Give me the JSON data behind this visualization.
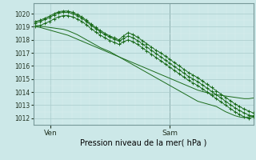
{
  "xlabel": "Pression niveau de la mer( hPa )",
  "bg_color": "#cce8e8",
  "grid_major_color": "#aacccc",
  "grid_minor_color": "#ddeeee",
  "line_color": "#1a6b1a",
  "ylim": [
    1011.5,
    1020.8
  ],
  "yticks": [
    1012,
    1013,
    1014,
    1015,
    1016,
    1017,
    1018,
    1019,
    1020
  ],
  "xtick_labels": [
    "Ven",
    "Sam"
  ],
  "vline_x": 0.615,
  "n_points": 48,
  "series_plain": [
    [
      1019.1,
      1019.05,
      1019.0,
      1018.95,
      1018.9,
      1018.85,
      1018.8,
      1018.7,
      1018.55,
      1018.4,
      1018.2,
      1018.0,
      1017.8,
      1017.6,
      1017.4,
      1017.25,
      1017.1,
      1016.9,
      1016.7,
      1016.5,
      1016.3,
      1016.1,
      1015.9,
      1015.7,
      1015.5,
      1015.3,
      1015.1,
      1014.9,
      1014.7,
      1014.5,
      1014.3,
      1014.1,
      1013.9,
      1013.7,
      1013.5,
      1013.3,
      1013.2,
      1013.1,
      1013.0,
      1012.9,
      1012.7,
      1012.5,
      1012.35,
      1012.2,
      1012.1,
      1012.05,
      1012.1,
      1012.2
    ],
    [
      1019.0,
      1018.95,
      1018.85,
      1018.75,
      1018.65,
      1018.55,
      1018.45,
      1018.35,
      1018.2,
      1018.05,
      1017.9,
      1017.75,
      1017.6,
      1017.45,
      1017.3,
      1017.15,
      1017.0,
      1016.85,
      1016.7,
      1016.55,
      1016.4,
      1016.25,
      1016.1,
      1015.95,
      1015.8,
      1015.65,
      1015.5,
      1015.35,
      1015.2,
      1015.05,
      1014.9,
      1014.75,
      1014.6,
      1014.45,
      1014.3,
      1014.15,
      1014.05,
      1013.95,
      1013.85,
      1013.8,
      1013.75,
      1013.7,
      1013.65,
      1013.6,
      1013.55,
      1013.5,
      1013.5,
      1013.55
    ]
  ],
  "series_marker": [
    [
      1019.4,
      1019.5,
      1019.65,
      1019.8,
      1020.0,
      1020.15,
      1020.2,
      1020.2,
      1020.1,
      1019.95,
      1019.75,
      1019.5,
      1019.2,
      1018.95,
      1018.7,
      1018.5,
      1018.3,
      1018.15,
      1018.0,
      1018.3,
      1018.55,
      1018.4,
      1018.2,
      1017.95,
      1017.7,
      1017.45,
      1017.2,
      1017.0,
      1016.75,
      1016.5,
      1016.25,
      1016.0,
      1015.75,
      1015.5,
      1015.3,
      1015.1,
      1014.85,
      1014.6,
      1014.35,
      1014.1,
      1013.85,
      1013.6,
      1013.35,
      1013.1,
      1012.9,
      1012.7,
      1012.55,
      1012.4
    ],
    [
      1019.3,
      1019.4,
      1019.55,
      1019.7,
      1019.9,
      1020.05,
      1020.1,
      1020.1,
      1020.0,
      1019.85,
      1019.65,
      1019.4,
      1019.1,
      1018.85,
      1018.6,
      1018.4,
      1018.2,
      1018.05,
      1017.9,
      1018.1,
      1018.3,
      1018.15,
      1017.95,
      1017.7,
      1017.45,
      1017.2,
      1016.95,
      1016.7,
      1016.45,
      1016.2,
      1015.95,
      1015.7,
      1015.45,
      1015.2,
      1015.0,
      1014.8,
      1014.55,
      1014.3,
      1014.05,
      1013.8,
      1013.55,
      1013.3,
      1013.05,
      1012.8,
      1012.6,
      1012.4,
      1012.25,
      1012.15
    ],
    [
      1019.0,
      1019.1,
      1019.25,
      1019.4,
      1019.6,
      1019.75,
      1019.85,
      1019.85,
      1019.75,
      1019.6,
      1019.4,
      1019.15,
      1018.85,
      1018.6,
      1018.35,
      1018.15,
      1017.95,
      1017.8,
      1017.65,
      1017.85,
      1018.0,
      1017.85,
      1017.65,
      1017.4,
      1017.15,
      1016.9,
      1016.65,
      1016.4,
      1016.15,
      1015.9,
      1015.65,
      1015.4,
      1015.15,
      1014.9,
      1014.7,
      1014.5,
      1014.25,
      1014.0,
      1013.75,
      1013.5,
      1013.25,
      1013.0,
      1012.75,
      1012.5,
      1012.3,
      1012.1,
      1012.0,
      1012.1
    ]
  ]
}
